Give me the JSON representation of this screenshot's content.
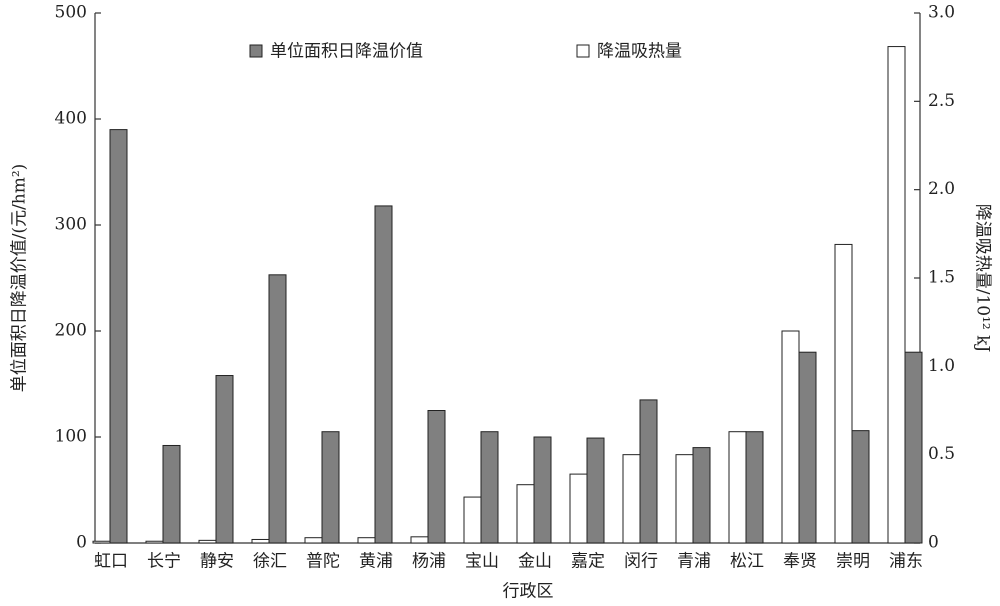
{
  "chart_data": {
    "type": "bar",
    "x_label": "行政区",
    "y_label": "单位面积日降温价值/(元/hm²)",
    "y2_label": "降温吸热量/10¹² kJ",
    "categories": [
      "虹口",
      "长宁",
      "静安",
      "徐汇",
      "普陀",
      "黄浦",
      "杨浦",
      "宝山",
      "金山",
      "嘉定",
      "闵行",
      "青浦",
      "松江",
      "奉贤",
      "崇明",
      "浦东"
    ],
    "series": [
      {
        "name": "单位面积日降温价值",
        "color": "#808080",
        "values": [
          390,
          92,
          158,
          253,
          105,
          318,
          125,
          105,
          100,
          99,
          135,
          90,
          105,
          180,
          106,
          180
        ]
      },
      {
        "name": "降温吸热量",
        "color": "#ffffff",
        "axis": "y2",
        "values": [
          0.01,
          0.01,
          0.015,
          0.02,
          0.03,
          0.03,
          0.035,
          0.26,
          0.33,
          0.39,
          0.5,
          0.5,
          0.63,
          1.2,
          1.69,
          2.81
        ]
      }
    ],
    "ylim": [
      0,
      500
    ],
    "yticks": [
      0,
      100,
      200,
      300,
      400,
      500
    ],
    "y2lim": [
      0,
      3
    ],
    "y2ticks": [
      0,
      0.5,
      {
        "value": 1,
        "label": "1.0"
      },
      1.5,
      {
        "value": 2,
        "label": "2.0"
      },
      2.5,
      {
        "value": 3,
        "label": "3.0"
      }
    ]
  }
}
